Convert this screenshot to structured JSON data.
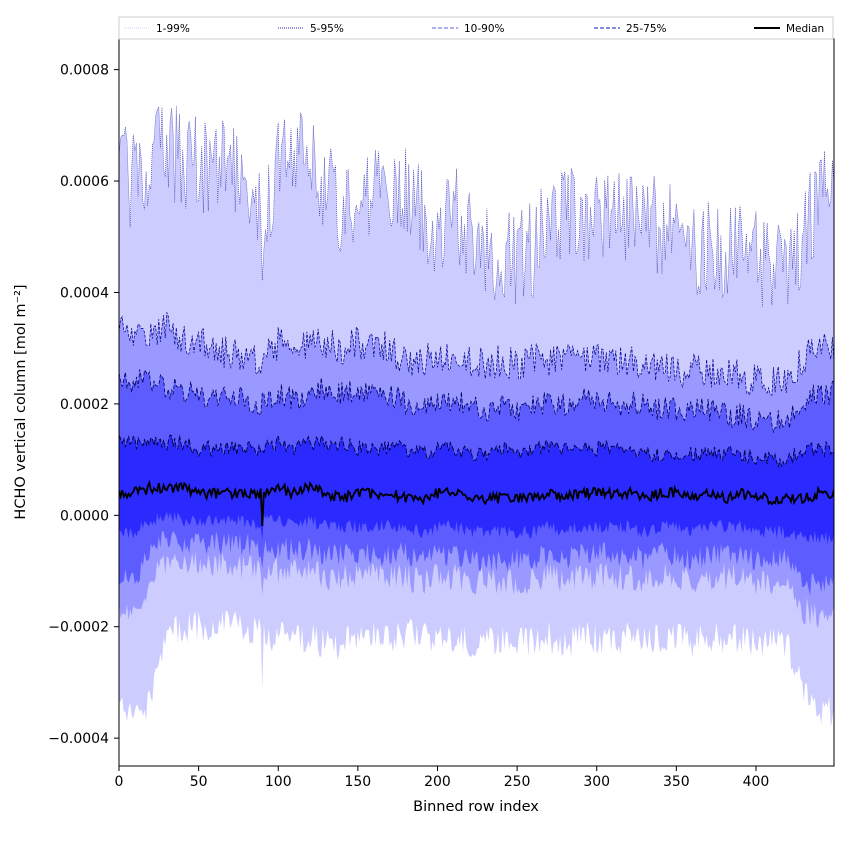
{
  "chart_data": {
    "type": "area",
    "title": "",
    "xlabel": "Binned row index",
    "ylabel": "HCHO vertical column [mol m⁻²]",
    "xlim": [
      0,
      449
    ],
    "ylim": [
      -0.00045,
      0.000855
    ],
    "x_ticks": [
      0,
      50,
      100,
      150,
      200,
      250,
      300,
      350,
      400
    ],
    "x_tick_labels": [
      "0",
      "50",
      "100",
      "150",
      "200",
      "250",
      "300",
      "350",
      "400"
    ],
    "y_ticks": [
      -0.0004,
      -0.0002,
      0.0,
      0.0002,
      0.0004,
      0.0006,
      0.0008
    ],
    "y_tick_labels": [
      "−0.0004",
      "−0.0002",
      "0.0000",
      "0.0002",
      "0.0004",
      "0.0006",
      "0.0008"
    ],
    "grid": false,
    "legend": {
      "placement": "top",
      "entries": [
        {
          "label": "1-99%",
          "color": "#d9d9f0",
          "style": "dotted"
        },
        {
          "label": "5-95%",
          "color": "#5555cc",
          "style": "dotted"
        },
        {
          "label": "10-90%",
          "color": "#8080e0",
          "style": "dashed"
        },
        {
          "label": "25-75%",
          "color": "#4444cc",
          "style": "dashed"
        },
        {
          "label": "Median",
          "color": "#000000",
          "style": "solid"
        }
      ]
    },
    "bands": [
      {
        "name": "1-99%",
        "fill": "#ccccff"
      },
      {
        "name": "5-95%",
        "fill": "#9999ff"
      },
      {
        "name": "10-90%",
        "fill": "#5c5cff"
      },
      {
        "name": "25-75%",
        "fill": "#2a2aff"
      }
    ],
    "profiles": {
      "x": [
        0,
        10,
        20,
        30,
        40,
        50,
        60,
        70,
        80,
        89,
        90,
        91,
        100,
        110,
        120,
        130,
        140,
        150,
        160,
        170,
        180,
        190,
        200,
        210,
        220,
        230,
        240,
        250,
        260,
        270,
        280,
        290,
        300,
        310,
        320,
        330,
        340,
        350,
        360,
        370,
        380,
        390,
        400,
        410,
        420,
        430,
        440,
        449
      ],
      "p99": [
        0.00062,
        0.0006,
        0.00063,
        0.00066,
        0.00064,
        0.00063,
        0.00062,
        0.00062,
        0.0006,
        0.00058,
        0.00036,
        0.00056,
        0.00062,
        0.00064,
        0.00066,
        0.00058,
        0.00056,
        0.00056,
        0.0006,
        0.0006,
        0.00058,
        0.00054,
        0.00052,
        0.00054,
        0.00052,
        0.00046,
        0.00047,
        0.00046,
        0.00048,
        0.00052,
        0.00054,
        0.00054,
        0.00054,
        0.00052,
        0.00054,
        0.00054,
        0.00052,
        0.00052,
        0.00048,
        0.00048,
        0.00046,
        0.00048,
        0.00046,
        0.00046,
        0.00046,
        0.00048,
        0.0006,
        0.0006
      ],
      "p95": [
        0.00034,
        0.00032,
        0.00033,
        0.00034,
        0.00032,
        0.00031,
        0.0003,
        0.00029,
        0.00029,
        0.00028,
        0.00028,
        0.00028,
        0.00031,
        0.0003,
        0.00031,
        0.00031,
        0.0003,
        0.00031,
        0.00031,
        0.0003,
        0.00028,
        0.00028,
        0.00028,
        0.00029,
        0.00028,
        0.00027,
        0.00028,
        0.00027,
        0.00028,
        0.00028,
        0.00028,
        0.00029,
        0.00028,
        0.00027,
        0.00028,
        0.00027,
        0.00027,
        0.00026,
        0.00026,
        0.00026,
        0.00025,
        0.00025,
        0.00024,
        0.00024,
        0.00024,
        0.00028,
        0.0003,
        0.0003
      ],
      "p90": [
        0.00025,
        0.00024,
        0.00024,
        0.00023,
        0.00022,
        0.00022,
        0.00021,
        0.00021,
        0.00021,
        0.0002,
        0.0002,
        0.0002,
        0.00022,
        0.00021,
        0.00022,
        0.00023,
        0.00022,
        0.00022,
        0.00022,
        0.00022,
        0.0002,
        0.0002,
        0.0002,
        0.00021,
        0.0002,
        0.00019,
        0.0002,
        0.00019,
        0.0002,
        0.0002,
        0.0002,
        0.00021,
        0.0002,
        0.0002,
        0.0002,
        0.0002,
        0.00019,
        0.00019,
        0.00019,
        0.00019,
        0.00018,
        0.00018,
        0.00017,
        0.00017,
        0.00017,
        0.00021,
        0.00022,
        0.00022
      ],
      "p75": [
        0.00013,
        0.00013,
        0.00013,
        0.00013,
        0.00013,
        0.00012,
        0.00012,
        0.00012,
        0.00012,
        0.00012,
        0.00012,
        0.00012,
        0.00013,
        0.00012,
        0.00013,
        0.00013,
        0.00013,
        0.00012,
        0.00012,
        0.00012,
        0.00012,
        0.00011,
        0.00012,
        0.00012,
        0.00011,
        0.00011,
        0.00012,
        0.00011,
        0.00012,
        0.00012,
        0.00012,
        0.00012,
        0.00012,
        0.00012,
        0.00012,
        0.00011,
        0.00011,
        0.00011,
        0.00011,
        0.00011,
        0.00011,
        0.00011,
        0.0001,
        0.0001,
        0.0001,
        0.00012,
        0.00012,
        0.00012
      ],
      "median": [
        4e-05,
        4e-05,
        5e-05,
        5e-05,
        5e-05,
        4e-05,
        4e-05,
        4e-05,
        4e-05,
        4e-05,
        -2e-05,
        4e-05,
        5e-05,
        4e-05,
        5e-05,
        4e-05,
        3e-05,
        4e-05,
        4e-05,
        4e-05,
        3e-05,
        3e-05,
        4e-05,
        4e-05,
        3e-05,
        3e-05,
        3e-05,
        3e-05,
        3e-05,
        4e-05,
        3e-05,
        4e-05,
        4e-05,
        4e-05,
        4e-05,
        3e-05,
        4e-05,
        4e-05,
        3e-05,
        4e-05,
        3e-05,
        4e-05,
        3e-05,
        3e-05,
        3e-05,
        3e-05,
        4e-05,
        4e-05
      ],
      "p25": [
        -3e-05,
        -3e-05,
        -1e-05,
        0.0,
        -1e-05,
        -1e-05,
        -1e-05,
        -1e-05,
        -1e-05,
        -2e-05,
        -4e-05,
        -1e-05,
        -1e-05,
        -1e-05,
        -1e-05,
        -2e-05,
        -2e-05,
        -2e-05,
        -2e-05,
        -2e-05,
        -2e-05,
        -3e-05,
        -2e-05,
        -2e-05,
        -3e-05,
        -3e-05,
        -3e-05,
        -3e-05,
        -3e-05,
        -2e-05,
        -3e-05,
        -2e-05,
        -2e-05,
        -2e-05,
        -2e-05,
        -3e-05,
        -2e-05,
        -2e-05,
        -3e-05,
        -2e-05,
        -2e-05,
        -2e-05,
        -3e-05,
        -3e-05,
        -3e-05,
        -4e-05,
        -4e-05,
        -4e-05
      ],
      "p10": [
        -0.00011,
        -0.00011,
        -6e-05,
        -4e-05,
        -5e-05,
        -5e-05,
        -5e-05,
        -5e-05,
        -5e-05,
        -6e-05,
        -8e-05,
        -6e-05,
        -6e-05,
        -6e-05,
        -6e-05,
        -7e-05,
        -7e-05,
        -7e-05,
        -7e-05,
        -7e-05,
        -7e-05,
        -8e-05,
        -7e-05,
        -7e-05,
        -8e-05,
        -8e-05,
        -8e-05,
        -8e-05,
        -8e-05,
        -7e-05,
        -8e-05,
        -7e-05,
        -7e-05,
        -7e-05,
        -7e-05,
        -8e-05,
        -7e-05,
        -7e-05,
        -8e-05,
        -7e-05,
        -7e-05,
        -7e-05,
        -8e-05,
        -8e-05,
        -8e-05,
        -0.00012,
        -0.00013,
        -0.00012
      ],
      "p5": [
        -0.00017,
        -0.00017,
        -0.00012,
        -8e-05,
        -8e-05,
        -9e-05,
        -9e-05,
        -9e-05,
        -9e-05,
        -0.0001,
        -0.00014,
        -0.0001,
        -0.0001,
        -0.0001,
        -0.0001,
        -0.00011,
        -0.00011,
        -0.00011,
        -0.00011,
        -0.00011,
        -0.00011,
        -0.00012,
        -0.00011,
        -0.00011,
        -0.00012,
        -0.00012,
        -0.00012,
        -0.00012,
        -0.00012,
        -0.00011,
        -0.00012,
        -0.00011,
        -0.00011,
        -0.00011,
        -0.00011,
        -0.00012,
        -0.00011,
        -0.00011,
        -0.00012,
        -0.00011,
        -0.00011,
        -0.00011,
        -0.00012,
        -0.00012,
        -0.00012,
        -0.00017,
        -0.00018,
        -0.00017
      ],
      "p1": [
        -0.00035,
        -0.00036,
        -0.00034,
        -0.00021,
        -0.0002,
        -0.0002,
        -0.0002,
        -0.0002,
        -0.0002,
        -0.00021,
        -0.00031,
        -0.00021,
        -0.00022,
        -0.00022,
        -0.00022,
        -0.00023,
        -0.00023,
        -0.00022,
        -0.00022,
        -0.00022,
        -0.00021,
        -0.00022,
        -0.00022,
        -0.00022,
        -0.00023,
        -0.00023,
        -0.00023,
        -0.00023,
        -0.00023,
        -0.00022,
        -0.00023,
        -0.00022,
        -0.00022,
        -0.00022,
        -0.00022,
        -0.00023,
        -0.00022,
        -0.00022,
        -0.00023,
        -0.00022,
        -0.00022,
        -0.00022,
        -0.00023,
        -0.00023,
        -0.00023,
        -0.00032,
        -0.00036,
        -0.00035
      ]
    }
  }
}
